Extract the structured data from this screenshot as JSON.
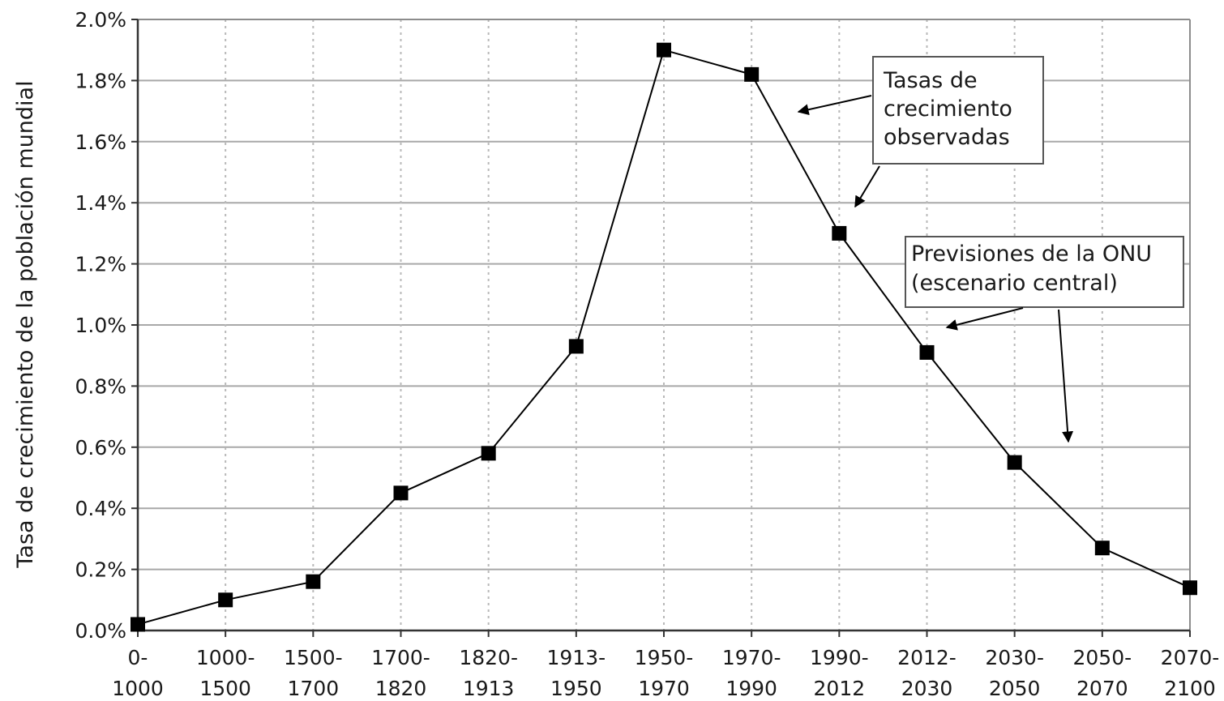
{
  "chart_data": {
    "type": "line",
    "title": "",
    "xlabel": "",
    "ylabel": "Tasa de crecimiento de la población mundial",
    "categories": [
      [
        "0-",
        "1000"
      ],
      [
        "1000-",
        "1500"
      ],
      [
        "1500-",
        "1700"
      ],
      [
        "1700-",
        "1820"
      ],
      [
        "1820-",
        "1913"
      ],
      [
        "1913-",
        "1950"
      ],
      [
        "1950-",
        "1970"
      ],
      [
        "1970-",
        "1990"
      ],
      [
        "1990-",
        "2012"
      ],
      [
        "2012-",
        "2030"
      ],
      [
        "2030-",
        "2050"
      ],
      [
        "2050-",
        "2070"
      ],
      [
        "2070-",
        "2100"
      ]
    ],
    "values": [
      0.02,
      0.1,
      0.16,
      0.45,
      0.58,
      0.93,
      1.9,
      1.82,
      1.3,
      0.91,
      0.55,
      0.27,
      0.14
    ],
    "ylim": [
      0,
      2.0
    ],
    "yticks": [
      "0.0%",
      "0.2%",
      "0.4%",
      "0.6%",
      "0.8%",
      "1.0%",
      "1.2%",
      "1.4%",
      "1.6%",
      "1.8%",
      "2.0%"
    ],
    "grid": {
      "horizontal": true,
      "vertical": "dotted"
    },
    "marker": "square",
    "line_color": "#000000",
    "annotations": [
      {
        "lines": [
          "Tasas de",
          "crecimiento",
          "observadas"
        ]
      },
      {
        "lines": [
          "Previsiones de la ONU",
          "(escenario central)"
        ]
      }
    ]
  }
}
